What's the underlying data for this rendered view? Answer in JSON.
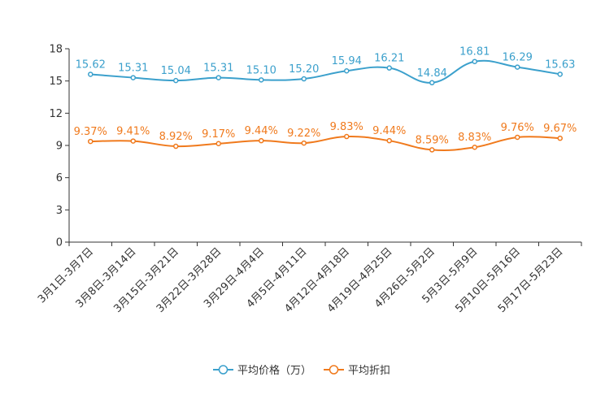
{
  "chart_data": {
    "type": "line",
    "title": "",
    "xlabel": "",
    "ylabel": "",
    "ylim": [
      0,
      18
    ],
    "yticks": [
      "0",
      "3",
      "6",
      "9",
      "12",
      "15",
      "18"
    ],
    "grid": false,
    "legend_position": "bottom-center",
    "categories": [
      "3月1日-3月7日",
      "3月8日-3月14日",
      "3月15日-3月21日",
      "3月22日-3月28日",
      "3月29日-4月4日",
      "4月5日-4月11日",
      "4月12日-4月18日",
      "4月19日-4月25日",
      "4月26日-5月2日",
      "5月3日-5月9日",
      "5月10日-5月16日",
      "5月17日-5月23日"
    ],
    "series": [
      {
        "name": "平均价格（万）",
        "color": "#3ba0cc",
        "values": [
          15.62,
          15.31,
          15.04,
          15.31,
          15.1,
          15.2,
          15.94,
          16.21,
          14.84,
          16.81,
          16.29,
          15.63
        ],
        "labels": [
          "15.62",
          "15.31",
          "15.04",
          "15.31",
          "15.10",
          "15.20",
          "15.94",
          "16.21",
          "14.84",
          "16.81",
          "16.29",
          "15.63"
        ]
      },
      {
        "name": "平均折扣",
        "color": "#f07a1d",
        "values": [
          9.37,
          9.41,
          8.92,
          9.17,
          9.44,
          9.22,
          9.83,
          9.44,
          8.59,
          8.83,
          9.76,
          9.67
        ],
        "labels": [
          "9.37%",
          "9.41%",
          "8.92%",
          "9.17%",
          "9.44%",
          "9.22%",
          "9.83%",
          "9.44%",
          "8.59%",
          "8.83%",
          "9.76%",
          "9.67%"
        ]
      }
    ]
  }
}
